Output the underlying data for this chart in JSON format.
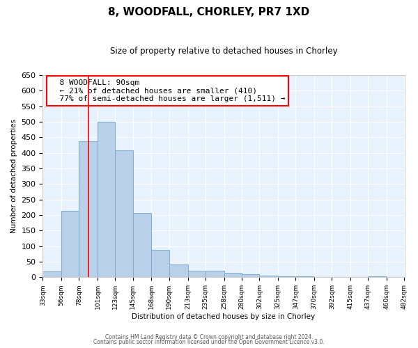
{
  "title": "8, WOODFALL, CHORLEY, PR7 1XD",
  "subtitle": "Size of property relative to detached houses in Chorley",
  "xlabel": "Distribution of detached houses by size in Chorley",
  "ylabel": "Number of detached properties",
  "bar_color": "#b8d0e8",
  "bar_edge_color": "#7aaed0",
  "background_color": "#e8f2fc",
  "grid_color": "#ffffff",
  "red_line_x": 90,
  "annotation_title": "8 WOODFALL: 90sqm",
  "annotation_line1": "← 21% of detached houses are smaller (410)",
  "annotation_line2": "77% of semi-detached houses are larger (1,511) →",
  "bins": [
    33,
    56,
    78,
    101,
    123,
    145,
    168,
    190,
    213,
    235,
    258,
    280,
    302,
    325,
    347,
    370,
    392,
    415,
    437,
    460,
    482
  ],
  "counts": [
    18,
    213,
    437,
    500,
    408,
    207,
    87,
    40,
    22,
    20,
    14,
    10,
    5,
    3,
    3,
    0,
    0,
    0,
    4,
    0
  ],
  "ylim": [
    0,
    650
  ],
  "yticks": [
    0,
    50,
    100,
    150,
    200,
    250,
    300,
    350,
    400,
    450,
    500,
    550,
    600,
    650
  ],
  "footer_line1": "Contains HM Land Registry data © Crown copyright and database right 2024.",
  "footer_line2": "Contains public sector information licensed under the Open Government Licence v3.0."
}
